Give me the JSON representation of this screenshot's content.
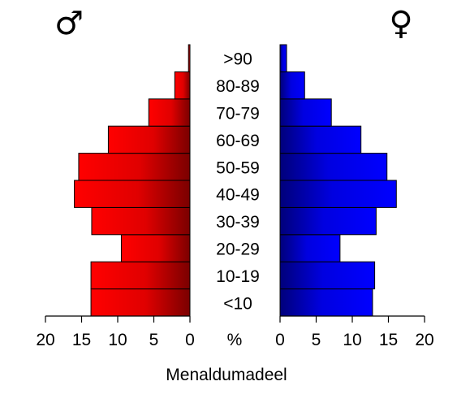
{
  "chart_data": {
    "type": "bar",
    "orientation": "horizontal-pyramid",
    "categories": [
      "<10",
      "10-19",
      "20-29",
      "30-39",
      "40-49",
      "50-59",
      "60-69",
      "70-79",
      "80-89",
      ">90"
    ],
    "series": [
      {
        "symbol": "♂",
        "values": [
          13.7,
          13.7,
          9.5,
          13.6,
          16.0,
          15.4,
          11.3,
          5.7,
          2.1,
          0.2
        ],
        "color": "#ff0000"
      },
      {
        "symbol": "♀",
        "values": [
          12.8,
          13.1,
          8.3,
          13.3,
          16.1,
          14.8,
          11.2,
          7.1,
          3.4,
          0.9
        ],
        "color": "#0000ff"
      }
    ],
    "xlim": [
      0,
      20
    ],
    "xticks": [
      "20",
      "15",
      "10",
      "5",
      "0"
    ],
    "xticks_right": [
      "0",
      "5",
      "10",
      "15",
      "20"
    ],
    "center_tick_label": "%",
    "xlabel": "Menaldumadeel"
  }
}
